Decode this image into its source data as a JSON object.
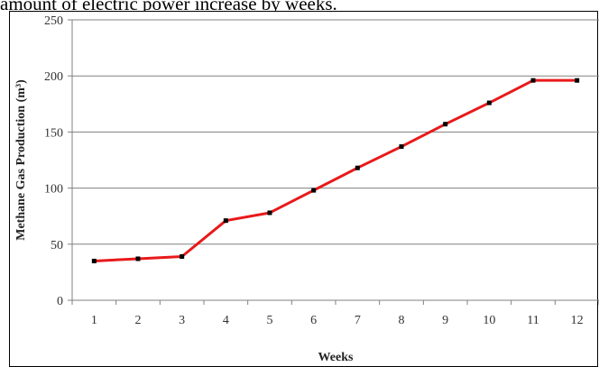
{
  "caption": "amount of electric power increase by weeks.",
  "chart_data": {
    "type": "line",
    "xlabel": "Weeks",
    "ylabel": "Methane Gas Production (m³)",
    "categories": [
      "1",
      "2",
      "3",
      "4",
      "5",
      "6",
      "7",
      "8",
      "9",
      "10",
      "11",
      "12"
    ],
    "series": [
      {
        "values": [
          35,
          37,
          39,
          71,
          78,
          98,
          118,
          137,
          157,
          176,
          196,
          196
        ]
      }
    ],
    "ylim": [
      0,
      250
    ],
    "yticks": [
      0,
      50,
      100,
      150,
      200,
      250
    ],
    "grid": true,
    "line_color": "#e8191b",
    "marker_color": "#000000"
  }
}
